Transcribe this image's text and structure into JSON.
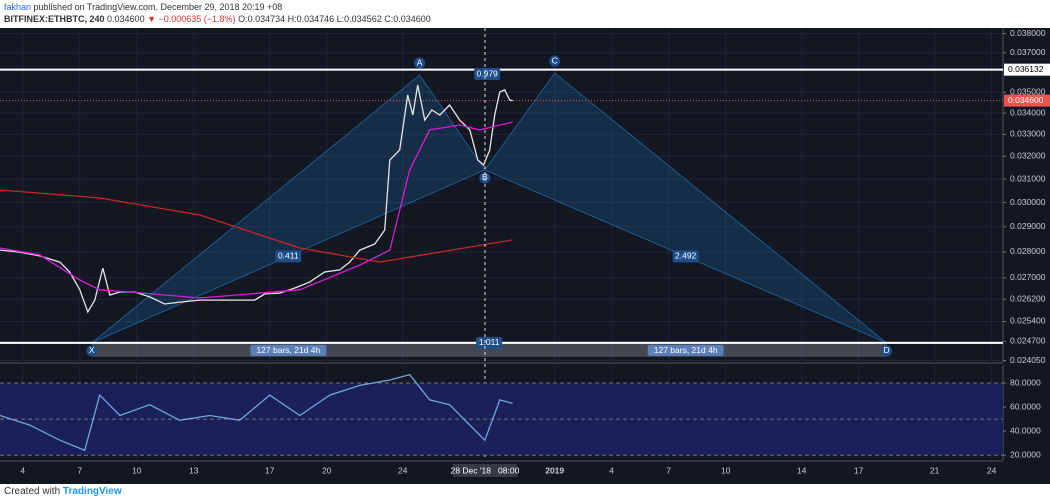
{
  "header": {
    "author": "fakhan",
    "published": "published on TradingView.com, December 29, 2018 20:19 +08",
    "symbol": "BITFINEX:ETHBTC, 240",
    "last": "0.034600",
    "change": "▼ −0.000635 (−1.8%)",
    "ohlc": "O:0.034734 H:0.034746 L:0.034562 C:0.034600"
  },
  "footer": {
    "text": "Created with",
    "brand": "TradingView"
  },
  "chart_data": [
    {
      "type": "line",
      "log_scale": true,
      "grid": true,
      "xlim": [
        -1.2,
        51.6
      ],
      "ylim": [
        0.024,
        0.0383
      ],
      "xticks": [
        {
          "value": 0,
          "label": "4"
        },
        {
          "value": 3,
          "label": "7"
        },
        {
          "value": 6,
          "label": "10"
        },
        {
          "value": 9,
          "label": "13"
        },
        {
          "value": 13,
          "label": "17"
        },
        {
          "value": 16,
          "label": "20"
        },
        {
          "value": 20,
          "label": "24"
        },
        {
          "value": 28,
          "label": "2019"
        },
        {
          "value": 31,
          "label": "4"
        },
        {
          "value": 34,
          "label": "7"
        },
        {
          "value": 37,
          "label": "10"
        },
        {
          "value": 41,
          "label": "14"
        },
        {
          "value": 44,
          "label": "17"
        },
        {
          "value": 48,
          "label": "21"
        },
        {
          "value": 51,
          "label": "24"
        }
      ],
      "crosshair": {
        "value": 24.33,
        "label": "28 Dec '18   08:00"
      },
      "yticks": [
        {
          "value": 0.038,
          "label": "0.038000"
        },
        {
          "value": 0.037,
          "label": "0.037000"
        },
        {
          "value": 0.035,
          "label": "0.035000"
        },
        {
          "value": 0.034,
          "label": "0.034000"
        },
        {
          "value": 0.033,
          "label": "0.033000"
        },
        {
          "value": 0.032,
          "label": "0.032000"
        },
        {
          "value": 0.031,
          "label": "0.031000"
        },
        {
          "value": 0.03,
          "label": "0.030000"
        },
        {
          "value": 0.029,
          "label": "0.029000"
        },
        {
          "value": 0.028,
          "label": "0.028000"
        },
        {
          "value": 0.027,
          "label": "0.027000"
        },
        {
          "value": 0.0262,
          "label": "0.026200"
        },
        {
          "value": 0.0254,
          "label": "0.025400"
        },
        {
          "value": 0.0247,
          "label": "0.024700"
        },
        {
          "value": 0.02405,
          "label": "0.024050"
        }
      ],
      "series": [
        {
          "color": "#e6e6e6",
          "x": [
            -1.2,
            -0.16,
            0.89,
            1.95,
            2.47,
            3.0,
            3.42,
            3.79,
            4.21,
            4.58,
            5.11,
            5.89,
            6.68,
            7.47,
            8.26,
            9.32,
            10.37,
            11.42,
            12.21,
            12.74,
            13.53,
            14.32,
            15.1,
            15.89,
            16.68,
            17.21,
            17.74,
            18.53,
            19.05,
            19.32,
            19.84,
            20.26,
            20.53,
            20.79,
            21.16,
            21.53,
            21.95,
            22.47,
            23.0,
            23.53,
            23.95,
            24.26,
            24.58,
            24.84,
            25.11,
            25.37,
            25.63,
            25.79
          ],
          "values": [
            0.02807,
            0.02799,
            0.02784,
            0.0276,
            0.02722,
            0.02655,
            0.02574,
            0.02617,
            0.02737,
            0.02636,
            0.02647,
            0.02647,
            0.02629,
            0.02603,
            0.0261,
            0.02617,
            0.02617,
            0.02617,
            0.02617,
            0.0264,
            0.02643,
            0.02662,
            0.02684,
            0.02722,
            0.0273,
            0.0276,
            0.02807,
            0.02831,
            0.02887,
            0.03184,
            0.03229,
            0.03487,
            0.03391,
            0.03536,
            0.03367,
            0.03415,
            0.03391,
            0.03439,
            0.03367,
            0.03321,
            0.03184,
            0.03162,
            0.03229,
            0.03391,
            0.03502,
            0.03512,
            0.03463,
            0.0346
          ]
        },
        {
          "color": "#c62828",
          "x": [
            -1.2,
            4.05,
            9.32,
            14.58,
            18.79,
            21.95,
            25.79
          ],
          "values": [
            0.03053,
            0.03019,
            0.02948,
            0.02815,
            0.0276,
            0.02799,
            0.02847
          ]
        },
        {
          "color": "#d81bd8",
          "x": [
            -1.2,
            0.89,
            3.0,
            4.05,
            5.63,
            9.32,
            14.58,
            17.74,
            19.32,
            20.37,
            21.42,
            23.0,
            24.05,
            25.79
          ],
          "values": [
            0.02815,
            0.02788,
            0.02692,
            0.02655,
            0.02647,
            0.02625,
            0.02655,
            0.02749,
            0.02807,
            0.0314,
            0.03321,
            0.03344,
            0.03321,
            0.03358
          ]
        }
      ],
      "hlines": [
        0.036132,
        0.02465
      ],
      "last_price": {
        "value": 0.0346,
        "label": "0.034600",
        "color": "#ef5350"
      },
      "pattern": {
        "color": "#2196f3",
        "points": [
          {
            "label": "X",
            "x": 3.63,
            "y": 0.02465
          },
          {
            "label": "A",
            "x": 20.89,
            "y": 0.03586
          },
          {
            "label": "B",
            "x": 24.32,
            "y": 0.0314
          },
          {
            "label": "C",
            "x": 28.0,
            "y": 0.03596
          },
          {
            "label": "D",
            "x": 45.47,
            "y": 0.02465
          }
        ]
      },
      "ratios": [
        0.411,
        0.979,
        2.492,
        1.011
      ],
      "ranges": [
        "127 bars, 21d 4h",
        "127 bars, 21d 4h"
      ]
    },
    {
      "type": "line",
      "xlim": [
        -1.2,
        51.6
      ],
      "ylim": [
        16,
        95
      ],
      "yticks": [
        {
          "value": 80,
          "label": "80.0000"
        },
        {
          "value": 60,
          "label": "60.0000"
        },
        {
          "value": 40,
          "label": "40.0000"
        },
        {
          "value": 20,
          "label": "20.0000"
        }
      ],
      "levels": [
        80,
        50,
        20
      ],
      "series": [
        {
          "color": "#6fa8dc",
          "x": [
            -1.2,
            0.37,
            1.95,
            3.26,
            4.05,
            5.11,
            6.68,
            8.26,
            9.84,
            11.42,
            13.0,
            14.58,
            16.16,
            17.74,
            19.32,
            20.37,
            21.42,
            22.47,
            23.53,
            24.32,
            25.11,
            25.79
          ],
          "values": [
            53,
            45,
            32.5,
            24,
            70,
            53,
            62,
            49,
            53,
            49,
            70,
            53,
            70,
            78,
            82.5,
            87,
            66,
            62,
            45,
            32.5,
            66,
            63
          ]
        }
      ]
    }
  ]
}
